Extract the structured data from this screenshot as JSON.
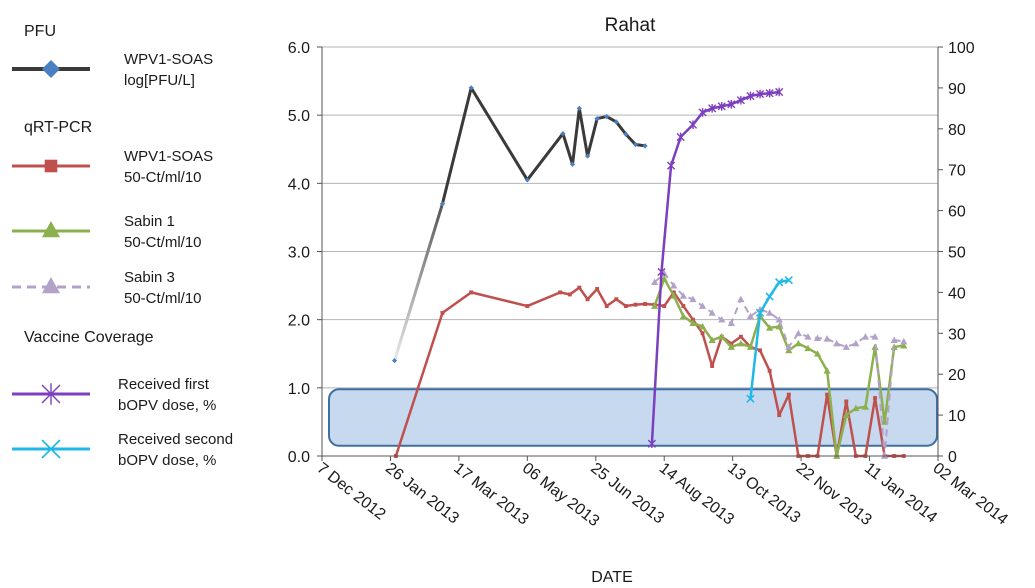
{
  "chart_data": {
    "type": "line",
    "title": "Rahat",
    "xlabel": "DATE",
    "ylabel": "",
    "ylim": [
      0,
      6
    ],
    "y2lim": [
      0,
      100
    ],
    "xlim": [
      "2012-12-07",
      "2014-03-02"
    ],
    "x_tick_labels": [
      "7 Dec 2012",
      "26 Jan 2013",
      "17 Mar 2013",
      "06 May 2013",
      "25 Jun 2013",
      "14 Aug 2013",
      "13 Oct 2013",
      "22 Nov 2013",
      "11 Jan 2014",
      "02 Mar 2014"
    ],
    "y_tick_labels": [
      "0.0",
      "1.0",
      "2.0",
      "3.0",
      "4.0",
      "5.0",
      "6.0"
    ],
    "y2_tick_labels": [
      "0",
      "10",
      "20",
      "30",
      "40",
      "50",
      "60",
      "70",
      "80",
      "90",
      "100"
    ],
    "grid": "horizontal",
    "legend_groups": {
      "pfu": "PFU",
      "qrt": "qRT-PCR",
      "vaccine": "Vaccine Coverage"
    },
    "series": [
      {
        "name": "WPV1-SOAS log[PFU/L]",
        "legend": [
          "WPV1-SOAS",
          "log[PFU/L]"
        ],
        "axis": "left",
        "color": "#3a3a3a",
        "marker_color": "#4a7fc1",
        "marker": "diamond",
        "points": [
          [
            "2013-01-29",
            1.4
          ],
          [
            "2013-03-05",
            3.7
          ],
          [
            "2013-03-26",
            5.4
          ],
          [
            "2013-05-06",
            4.05
          ],
          [
            "2013-06-01",
            4.73
          ],
          [
            "2013-06-08",
            4.28
          ],
          [
            "2013-06-13",
            5.1
          ],
          [
            "2013-06-19",
            4.4
          ],
          [
            "2013-06-26",
            4.95
          ],
          [
            "2013-07-03",
            4.98
          ],
          [
            "2013-07-10",
            4.9
          ],
          [
            "2013-07-17",
            4.72
          ],
          [
            "2013-07-24",
            4.57
          ],
          [
            "2013-07-31",
            4.55
          ]
        ]
      },
      {
        "name": "WPV1-SOAS 50-Ct/ml/10",
        "legend": [
          "WPV1-SOAS",
          "50-Ct/ml/10"
        ],
        "axis": "left",
        "color": "#c0504d",
        "marker": "square",
        "points": [
          [
            "2013-01-30",
            0.0
          ],
          [
            "2013-03-05",
            2.1
          ],
          [
            "2013-03-26",
            2.4
          ],
          [
            "2013-05-06",
            2.2
          ],
          [
            "2013-05-30",
            2.4
          ],
          [
            "2013-06-06",
            2.37
          ],
          [
            "2013-06-13",
            2.47
          ],
          [
            "2013-06-19",
            2.3
          ],
          [
            "2013-06-26",
            2.45
          ],
          [
            "2013-07-03",
            2.2
          ],
          [
            "2013-07-10",
            2.3
          ],
          [
            "2013-07-17",
            2.2
          ],
          [
            "2013-07-24",
            2.22
          ],
          [
            "2013-07-31",
            2.23
          ],
          [
            "2013-08-07",
            2.22
          ],
          [
            "2013-08-14",
            2.2
          ],
          [
            "2013-08-21",
            2.4
          ],
          [
            "2013-08-28",
            2.2
          ],
          [
            "2013-09-04",
            2.0
          ],
          [
            "2013-09-11",
            1.8
          ],
          [
            "2013-09-18",
            1.32
          ],
          [
            "2013-09-25",
            1.75
          ],
          [
            "2013-10-02",
            1.65
          ],
          [
            "2013-10-09",
            1.75
          ],
          [
            "2013-10-16",
            1.6
          ],
          [
            "2013-10-23",
            1.55
          ],
          [
            "2013-10-30",
            1.25
          ],
          [
            "2013-11-06",
            0.6
          ],
          [
            "2013-11-13",
            0.9
          ],
          [
            "2013-11-20",
            0.0
          ],
          [
            "2013-11-27",
            0.0
          ],
          [
            "2013-12-04",
            0.0
          ],
          [
            "2013-12-11",
            0.9
          ],
          [
            "2013-12-18",
            0.0
          ],
          [
            "2013-12-25",
            0.8
          ],
          [
            "2014-01-01",
            0.0
          ],
          [
            "2014-01-08",
            0.0
          ],
          [
            "2014-01-15",
            0.85
          ],
          [
            "2014-01-22",
            0.0
          ],
          [
            "2014-01-29",
            0.0
          ],
          [
            "2014-02-05",
            0.0
          ]
        ]
      },
      {
        "name": "Sabin 1 50-Ct/ml/10",
        "legend": [
          "Sabin 1",
          "50-Ct/ml/10"
        ],
        "axis": "left",
        "color": "#8db04f",
        "marker": "triangle",
        "points": [
          [
            "2013-08-07",
            2.2
          ],
          [
            "2013-08-14",
            2.6
          ],
          [
            "2013-08-21",
            2.35
          ],
          [
            "2013-08-28",
            2.05
          ],
          [
            "2013-09-04",
            1.95
          ],
          [
            "2013-09-11",
            1.9
          ],
          [
            "2013-09-18",
            1.7
          ],
          [
            "2013-09-25",
            1.75
          ],
          [
            "2013-10-02",
            1.6
          ],
          [
            "2013-10-09",
            1.65
          ],
          [
            "2013-10-16",
            1.6
          ],
          [
            "2013-10-23",
            2.05
          ],
          [
            "2013-10-30",
            1.88
          ],
          [
            "2013-11-06",
            1.9
          ],
          [
            "2013-11-13",
            1.55
          ],
          [
            "2013-11-20",
            1.65
          ],
          [
            "2013-11-27",
            1.58
          ],
          [
            "2013-12-04",
            1.5
          ],
          [
            "2013-12-11",
            1.25
          ],
          [
            "2013-12-18",
            0.0
          ],
          [
            "2013-12-25",
            0.6
          ],
          [
            "2014-01-01",
            0.7
          ],
          [
            "2014-01-08",
            0.72
          ],
          [
            "2014-01-15",
            1.6
          ],
          [
            "2014-01-22",
            0.5
          ],
          [
            "2014-01-29",
            1.6
          ],
          [
            "2014-02-05",
            1.62
          ]
        ]
      },
      {
        "name": "Sabin 3 50-Ct/ml/10",
        "legend": [
          "Sabin 3",
          "50-Ct/ml/10"
        ],
        "axis": "left",
        "color": "#b3a2c7",
        "marker": "triangle",
        "dashed": true,
        "points": [
          [
            "2013-08-07",
            2.55
          ],
          [
            "2013-08-14",
            2.68
          ],
          [
            "2013-08-21",
            2.5
          ],
          [
            "2013-08-28",
            2.35
          ],
          [
            "2013-09-04",
            2.3
          ],
          [
            "2013-09-11",
            2.2
          ],
          [
            "2013-09-18",
            2.1
          ],
          [
            "2013-09-25",
            2.0
          ],
          [
            "2013-10-02",
            1.95
          ],
          [
            "2013-10-09",
            2.3
          ],
          [
            "2013-10-16",
            2.05
          ],
          [
            "2013-10-23",
            2.15
          ],
          [
            "2013-10-30",
            2.1
          ],
          [
            "2013-11-06",
            2.0
          ],
          [
            "2013-11-13",
            1.6
          ],
          [
            "2013-11-20",
            1.8
          ],
          [
            "2013-11-27",
            1.75
          ],
          [
            "2013-12-04",
            1.73
          ],
          [
            "2013-12-11",
            1.72
          ],
          [
            "2013-12-18",
            1.65
          ],
          [
            "2013-12-25",
            1.6
          ],
          [
            "2014-01-01",
            1.65
          ],
          [
            "2014-01-08",
            1.75
          ],
          [
            "2014-01-15",
            1.75
          ],
          [
            "2014-01-22",
            0.0
          ],
          [
            "2014-01-29",
            1.7
          ],
          [
            "2014-02-05",
            1.68
          ]
        ]
      },
      {
        "name": "Received first bOPV dose, %",
        "legend": [
          "Received first",
          "bOPV dose, %"
        ],
        "axis": "right",
        "color": "#7b3fbf",
        "marker": "star",
        "points": [
          [
            "2013-08-05",
            3
          ],
          [
            "2013-08-12",
            45
          ],
          [
            "2013-08-19",
            71
          ],
          [
            "2013-08-26",
            78
          ],
          [
            "2013-09-04",
            81
          ],
          [
            "2013-09-11",
            84
          ],
          [
            "2013-09-18",
            85
          ],
          [
            "2013-09-25",
            85.5
          ],
          [
            "2013-10-02",
            86
          ],
          [
            "2013-10-09",
            87
          ],
          [
            "2013-10-16",
            88
          ],
          [
            "2013-10-23",
            88.5
          ],
          [
            "2013-10-30",
            88.7
          ],
          [
            "2013-11-06",
            89
          ]
        ]
      },
      {
        "name": "Received second bOPV dose, %",
        "legend": [
          "Received second",
          "bOPV dose, %"
        ],
        "axis": "right",
        "color": "#1fb8e8",
        "marker": "x",
        "points": [
          [
            "2013-10-16",
            14
          ],
          [
            "2013-10-23",
            35
          ],
          [
            "2013-10-30",
            39
          ],
          [
            "2013-11-06",
            42.5
          ],
          [
            "2013-11-13",
            43
          ]
        ]
      }
    ],
    "highlight_band": {
      "from": 0.15,
      "to": 0.98,
      "fill": "#c6d9ee",
      "stroke": "#3d6fa5"
    }
  }
}
